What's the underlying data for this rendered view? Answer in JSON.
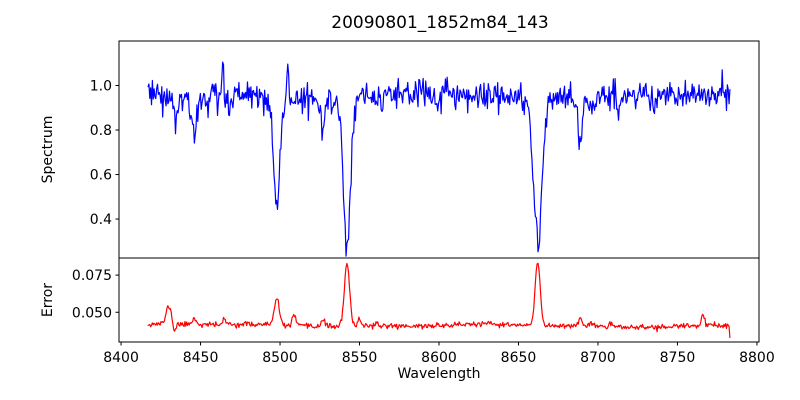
{
  "chart_data": {
    "type": "line",
    "title": "20090801_1852m84_143",
    "xlabel": "Wavelength",
    "x_range": [
      8417,
      8783
    ],
    "xlim": [
      8398.7,
      8801.3
    ],
    "x_ticks": [
      8400,
      8450,
      8500,
      8550,
      8600,
      8650,
      8700,
      8750,
      8800
    ],
    "x_tick_labels": [
      "8400",
      "8450",
      "8500",
      "8550",
      "8600",
      "8650",
      "8700",
      "8750",
      "8800"
    ],
    "grid": false,
    "legend": "none",
    "background_color": "#ffffff",
    "axis_color": "#000000",
    "subplots": [
      {
        "ylabel": "Spectrum",
        "ylim": [
          0.225,
          1.2
        ],
        "y_ticks": [
          0.4,
          0.6,
          0.8,
          1.0
        ],
        "y_tick_labels": [
          "0.4",
          "0.6",
          "0.8",
          "1.0"
        ],
        "color": "#0000ff",
        "series": {
          "description": "noisy stellar spectrum, continuum ~0.95 with Ca II triplet absorption",
          "n_points": 680,
          "seed": 3,
          "baseline": 0.952,
          "slope_per_angstrom": 0.0,
          "noise_sigma": 0.035,
          "smooth_variation": {
            "amplitudes": [
              0.012,
              0.008
            ],
            "periods": [
              25,
              9.7
            ]
          },
          "features": [
            {
              "center": 8434.0,
              "amp": -0.1,
              "width": 1.4
            },
            {
              "center": 8446.0,
              "amp": -0.17,
              "width": 1.8
            },
            {
              "center": 8464.0,
              "amp": 0.11,
              "width": 0.6
            },
            {
              "center": 8468.0,
              "amp": -0.08,
              "width": 1.2
            },
            {
              "center": 8498.0,
              "amp": -0.5,
              "width": 1.8
            },
            {
              "center": 8505.0,
              "amp": 0.13,
              "width": 0.7
            },
            {
              "center": 8527.0,
              "amp": -0.13,
              "width": 1.6
            },
            {
              "center": 8542.1,
              "amp": -0.68,
              "width": 2.3
            },
            {
              "center": 8598.0,
              "amp": -0.06,
              "width": 1.2
            },
            {
              "center": 8662.1,
              "amp": -0.66,
              "width": 2.6
            },
            {
              "center": 8688.6,
              "amp": -0.2,
              "width": 1.6
            },
            {
              "center": 8713.0,
              "amp": -0.06,
              "width": 1.2
            },
            {
              "center": 8736.0,
              "amp": -0.07,
              "width": 1.3
            }
          ]
        }
      },
      {
        "ylabel": "Error",
        "ylim": [
          0.03,
          0.0865
        ],
        "y_ticks": [
          0.05,
          0.075
        ],
        "y_tick_labels": [
          "0.050",
          "0.075"
        ],
        "color": "#ff0000",
        "series": {
          "description": "error spectrum, baseline ~0.041 with peaks at absorption lines",
          "n_points": 680,
          "seed": 11,
          "baseline": 0.0415,
          "slope_per_angstrom": -2e-06,
          "noise_sigma": 0.0009,
          "smooth_variation": {
            "amplitudes": [
              0.0006,
              0.0004
            ],
            "periods": [
              30,
              11
            ]
          },
          "end_value": 0.033,
          "features": [
            {
              "center": 8430.0,
              "amp": 0.012,
              "width": 1.6
            },
            {
              "center": 8433.5,
              "amp": -0.0055,
              "width": 0.8
            },
            {
              "center": 8446.0,
              "amp": 0.004,
              "width": 1.5
            },
            {
              "center": 8465.0,
              "amp": 0.003,
              "width": 1.2
            },
            {
              "center": 8498.0,
              "amp": 0.017,
              "width": 1.6
            },
            {
              "center": 8509.0,
              "amp": 0.007,
              "width": 1.2
            },
            {
              "center": 8527.0,
              "amp": 0.004,
              "width": 1.5
            },
            {
              "center": 8542.1,
              "amp": 0.042,
              "width": 1.6
            },
            {
              "center": 8550.0,
              "amp": 0.005,
              "width": 1.0
            },
            {
              "center": 8662.1,
              "amp": 0.042,
              "width": 1.6
            },
            {
              "center": 8688.6,
              "amp": 0.004,
              "width": 1.2
            },
            {
              "center": 8766.0,
              "amp": 0.008,
              "width": 1.0
            }
          ]
        }
      }
    ]
  }
}
